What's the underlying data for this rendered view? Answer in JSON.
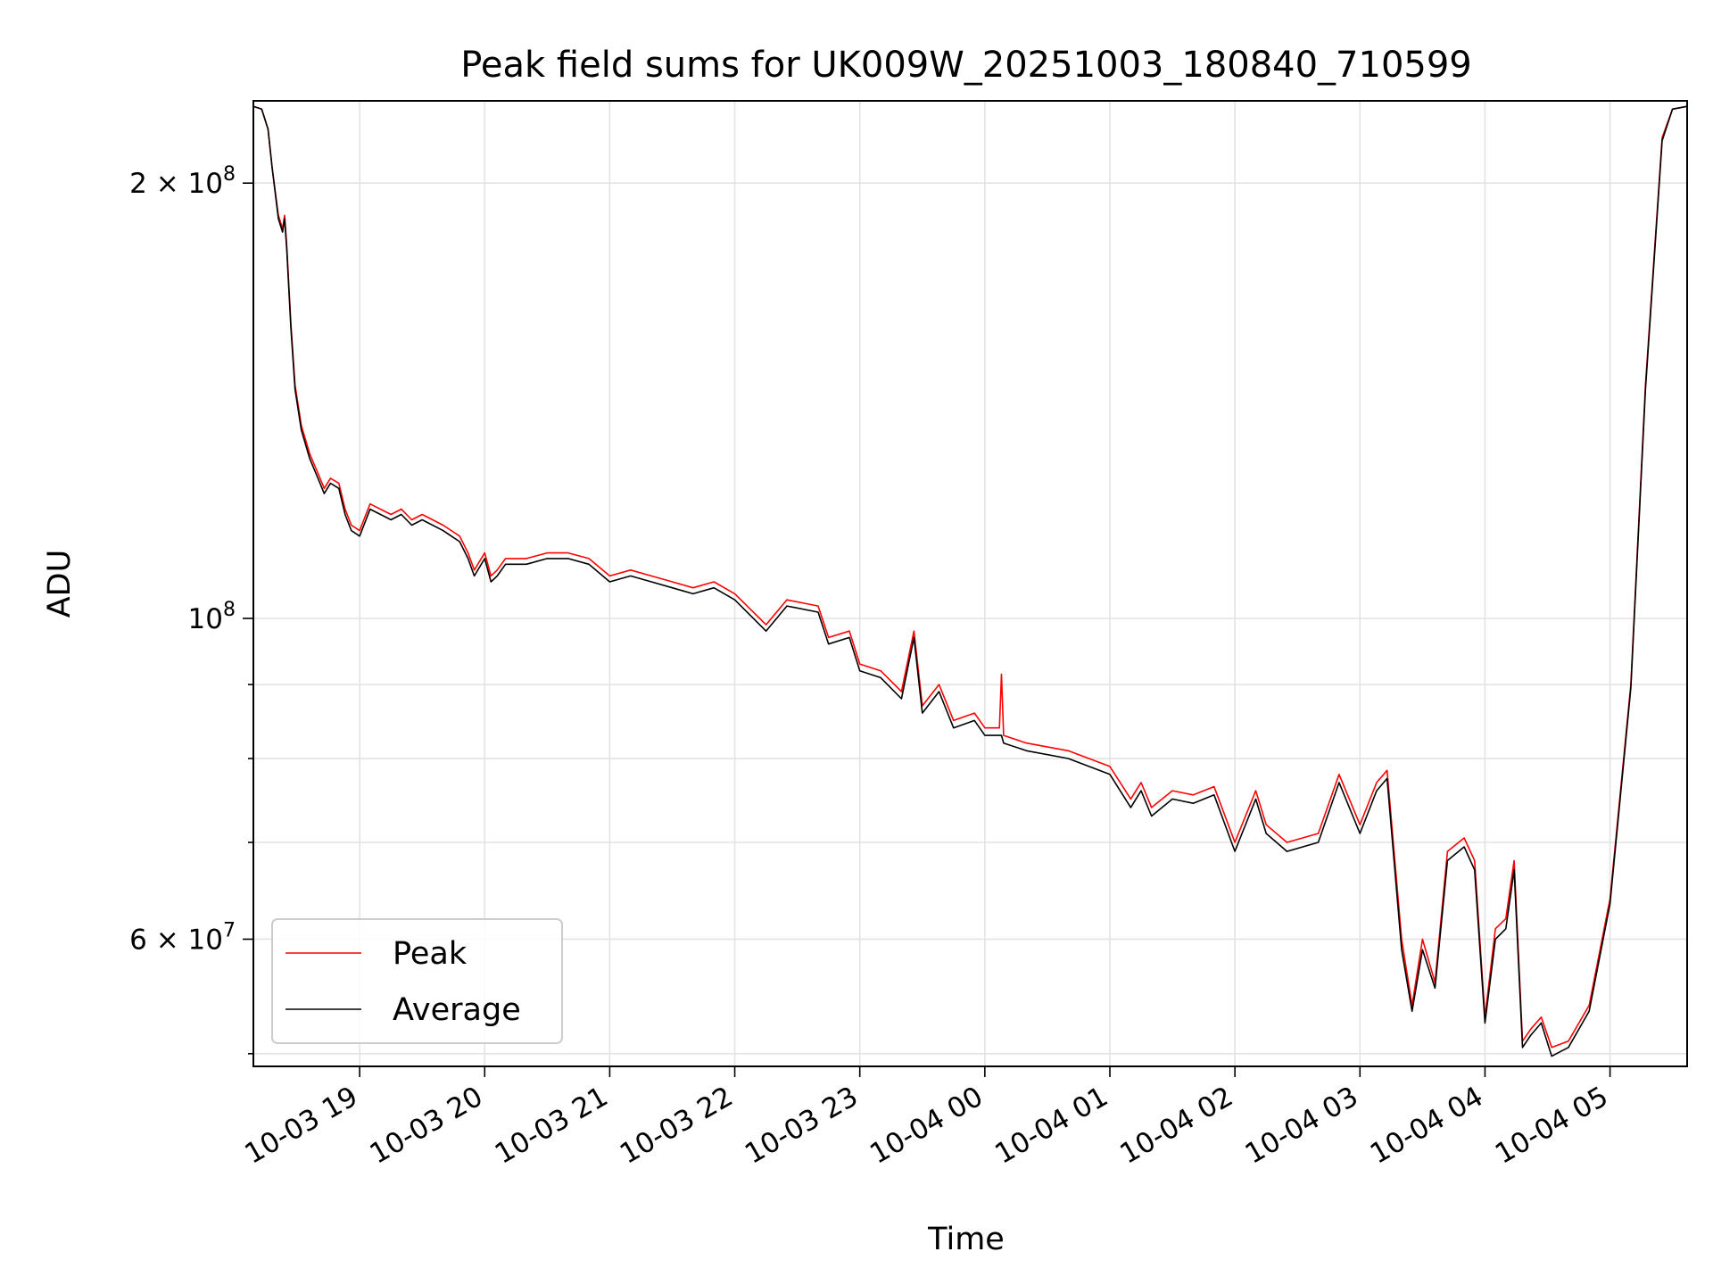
{
  "chart_data": {
    "type": "line",
    "title": "Peak field sums for UK009W_20251003_180840_710599",
    "xlabel": "Time",
    "ylabel": "ADU",
    "x_scale": "time",
    "y_scale": "log",
    "xlim": [
      "2025-10-03 18:09",
      "2025-10-04 05:37"
    ],
    "ylim": [
      49000000,
      228000000
    ],
    "grid": true,
    "legend_position": "lower-left",
    "x_ticks": [
      {
        "value": "2025-10-03 19:00",
        "label": "10-03 19"
      },
      {
        "value": "2025-10-03 20:00",
        "label": "10-03 20"
      },
      {
        "value": "2025-10-03 21:00",
        "label": "10-03 21"
      },
      {
        "value": "2025-10-03 22:00",
        "label": "10-03 22"
      },
      {
        "value": "2025-10-03 23:00",
        "label": "10-03 23"
      },
      {
        "value": "2025-10-04 00:00",
        "label": "10-04 00"
      },
      {
        "value": "2025-10-04 01:00",
        "label": "10-04 01"
      },
      {
        "value": "2025-10-04 02:00",
        "label": "10-04 02"
      },
      {
        "value": "2025-10-04 03:00",
        "label": "10-04 03"
      },
      {
        "value": "2025-10-04 04:00",
        "label": "10-04 04"
      },
      {
        "value": "2025-10-04 05:00",
        "label": "10-04 05"
      }
    ],
    "y_ticks": [
      {
        "value": 200000000,
        "mantissa": "2",
        "times": "×",
        "base": "10",
        "exp": "8"
      },
      {
        "value": 100000000,
        "mantissa": "",
        "times": "",
        "base": "10",
        "exp": "8"
      },
      {
        "value": 60000000,
        "mantissa": "6",
        "times": "×",
        "base": "10",
        "exp": "7"
      }
    ],
    "y_minor_ticks": [
      50000000,
      70000000,
      80000000,
      90000000
    ],
    "series": [
      {
        "name": "Peak",
        "color": "#ff0000",
        "points": [
          [
            "2025-10-03 18:09",
            226000000
          ],
          [
            "2025-10-03 18:13",
            225000000
          ],
          [
            "2025-10-03 18:16",
            218000000
          ],
          [
            "2025-10-03 18:18",
            205000000
          ],
          [
            "2025-10-03 18:21",
            190000000
          ],
          [
            "2025-10-03 18:23",
            186000000
          ],
          [
            "2025-10-03 18:24",
            190000000
          ],
          [
            "2025-10-03 18:25",
            181000000
          ],
          [
            "2025-10-03 18:27",
            160000000
          ],
          [
            "2025-10-03 18:29",
            145000000
          ],
          [
            "2025-10-03 18:32",
            136000000
          ],
          [
            "2025-10-03 18:36",
            130000000
          ],
          [
            "2025-10-03 18:40",
            126000000
          ],
          [
            "2025-10-03 18:43",
            123000000
          ],
          [
            "2025-10-03 18:46",
            125000000
          ],
          [
            "2025-10-03 18:50",
            124000000
          ],
          [
            "2025-10-03 18:53",
            119000000
          ],
          [
            "2025-10-03 18:56",
            116000000
          ],
          [
            "2025-10-03 19:00",
            115000000
          ],
          [
            "2025-10-03 19:05",
            120000000
          ],
          [
            "2025-10-03 19:10",
            119000000
          ],
          [
            "2025-10-03 19:15",
            118000000
          ],
          [
            "2025-10-03 19:20",
            119000000
          ],
          [
            "2025-10-03 19:25",
            117000000
          ],
          [
            "2025-10-03 19:30",
            118000000
          ],
          [
            "2025-10-03 19:40",
            116000000
          ],
          [
            "2025-10-03 19:48",
            114000000
          ],
          [
            "2025-10-03 19:52",
            111000000
          ],
          [
            "2025-10-03 19:55",
            108000000
          ],
          [
            "2025-10-03 20:00",
            111000000
          ],
          [
            "2025-10-03 20:03",
            107000000
          ],
          [
            "2025-10-03 20:06",
            108000000
          ],
          [
            "2025-10-03 20:10",
            110000000
          ],
          [
            "2025-10-03 20:20",
            110000000
          ],
          [
            "2025-10-03 20:30",
            111000000
          ],
          [
            "2025-10-03 20:40",
            111000000
          ],
          [
            "2025-10-03 20:50",
            110000000
          ],
          [
            "2025-10-03 21:00",
            107000000
          ],
          [
            "2025-10-03 21:10",
            108000000
          ],
          [
            "2025-10-03 21:20",
            107000000
          ],
          [
            "2025-10-03 21:30",
            106000000
          ],
          [
            "2025-10-03 21:40",
            105000000
          ],
          [
            "2025-10-03 21:50",
            106000000
          ],
          [
            "2025-10-03 22:00",
            104000000
          ],
          [
            "2025-10-03 22:15",
            99000000
          ],
          [
            "2025-10-03 22:25",
            103000000
          ],
          [
            "2025-10-03 22:40",
            102000000
          ],
          [
            "2025-10-03 22:45",
            97000000
          ],
          [
            "2025-10-03 22:55",
            98000000
          ],
          [
            "2025-10-03 23:00",
            93000000
          ],
          [
            "2025-10-03 23:10",
            92000000
          ],
          [
            "2025-10-03 23:20",
            89000000
          ],
          [
            "2025-10-03 23:26",
            98000000
          ],
          [
            "2025-10-03 23:30",
            87000000
          ],
          [
            "2025-10-03 23:38",
            90000000
          ],
          [
            "2025-10-03 23:45",
            85000000
          ],
          [
            "2025-10-03 23:55",
            86000000
          ],
          [
            "2025-10-04 00:00",
            84000000
          ],
          [
            "2025-10-04 00:07",
            84000000
          ],
          [
            "2025-10-04 00:08",
            91500000
          ],
          [
            "2025-10-04 00:09",
            83000000
          ],
          [
            "2025-10-04 00:20",
            82000000
          ],
          [
            "2025-10-04 00:40",
            81000000
          ],
          [
            "2025-10-04 01:00",
            79000000
          ],
          [
            "2025-10-04 01:10",
            75000000
          ],
          [
            "2025-10-04 01:15",
            77000000
          ],
          [
            "2025-10-04 01:20",
            74000000
          ],
          [
            "2025-10-04 01:30",
            76000000
          ],
          [
            "2025-10-04 01:40",
            75500000
          ],
          [
            "2025-10-04 01:50",
            76500000
          ],
          [
            "2025-10-04 02:00",
            70000000
          ],
          [
            "2025-10-04 02:10",
            76000000
          ],
          [
            "2025-10-04 02:15",
            72000000
          ],
          [
            "2025-10-04 02:25",
            70000000
          ],
          [
            "2025-10-04 02:40",
            71000000
          ],
          [
            "2025-10-04 02:50",
            78000000
          ],
          [
            "2025-10-04 03:00",
            72000000
          ],
          [
            "2025-10-04 03:08",
            77000000
          ],
          [
            "2025-10-04 03:13",
            78500000
          ],
          [
            "2025-10-04 03:20",
            60000000
          ],
          [
            "2025-10-04 03:25",
            54000000
          ],
          [
            "2025-10-04 03:30",
            60000000
          ],
          [
            "2025-10-04 03:36",
            56000000
          ],
          [
            "2025-10-04 03:42",
            69000000
          ],
          [
            "2025-10-04 03:50",
            70500000
          ],
          [
            "2025-10-04 03:55",
            68000000
          ],
          [
            "2025-10-04 04:00",
            53000000
          ],
          [
            "2025-10-04 04:05",
            61000000
          ],
          [
            "2025-10-04 04:10",
            62000000
          ],
          [
            "2025-10-04 04:14",
            68000000
          ],
          [
            "2025-10-04 04:18",
            51000000
          ],
          [
            "2025-10-04 04:22",
            52000000
          ],
          [
            "2025-10-04 04:27",
            53000000
          ],
          [
            "2025-10-04 04:32",
            50500000
          ],
          [
            "2025-10-04 04:40",
            51000000
          ],
          [
            "2025-10-04 04:50",
            54000000
          ],
          [
            "2025-10-04 05:00",
            64000000
          ],
          [
            "2025-10-04 05:10",
            90000000
          ],
          [
            "2025-10-04 05:17",
            145000000
          ],
          [
            "2025-10-04 05:25",
            215000000
          ],
          [
            "2025-10-04 05:30",
            225000000
          ],
          [
            "2025-10-04 05:37",
            226000000
          ]
        ]
      },
      {
        "name": "Average",
        "color": "#000000",
        "points": [
          [
            "2025-10-03 18:09",
            226000000
          ],
          [
            "2025-10-03 18:13",
            225000000
          ],
          [
            "2025-10-03 18:16",
            218000000
          ],
          [
            "2025-10-03 18:18",
            205000000
          ],
          [
            "2025-10-03 18:21",
            189000000
          ],
          [
            "2025-10-03 18:23",
            185000000
          ],
          [
            "2025-10-03 18:24",
            189000000
          ],
          [
            "2025-10-03 18:25",
            180000000
          ],
          [
            "2025-10-03 18:27",
            159000000
          ],
          [
            "2025-10-03 18:29",
            144000000
          ],
          [
            "2025-10-03 18:32",
            135000000
          ],
          [
            "2025-10-03 18:36",
            129000000
          ],
          [
            "2025-10-03 18:40",
            125000000
          ],
          [
            "2025-10-03 18:43",
            122000000
          ],
          [
            "2025-10-03 18:46",
            124000000
          ],
          [
            "2025-10-03 18:50",
            123000000
          ],
          [
            "2025-10-03 18:53",
            118000000
          ],
          [
            "2025-10-03 18:56",
            115000000
          ],
          [
            "2025-10-03 19:00",
            114000000
          ],
          [
            "2025-10-03 19:05",
            119000000
          ],
          [
            "2025-10-03 19:10",
            118000000
          ],
          [
            "2025-10-03 19:15",
            117000000
          ],
          [
            "2025-10-03 19:20",
            118000000
          ],
          [
            "2025-10-03 19:25",
            116000000
          ],
          [
            "2025-10-03 19:30",
            117000000
          ],
          [
            "2025-10-03 19:40",
            115000000
          ],
          [
            "2025-10-03 19:48",
            113000000
          ],
          [
            "2025-10-03 19:52",
            110000000
          ],
          [
            "2025-10-03 19:55",
            107000000
          ],
          [
            "2025-10-03 20:00",
            110000000
          ],
          [
            "2025-10-03 20:03",
            106000000
          ],
          [
            "2025-10-03 20:06",
            107000000
          ],
          [
            "2025-10-03 20:10",
            109000000
          ],
          [
            "2025-10-03 20:20",
            109000000
          ],
          [
            "2025-10-03 20:30",
            110000000
          ],
          [
            "2025-10-03 20:40",
            110000000
          ],
          [
            "2025-10-03 20:50",
            109000000
          ],
          [
            "2025-10-03 21:00",
            106000000
          ],
          [
            "2025-10-03 21:10",
            107000000
          ],
          [
            "2025-10-03 21:20",
            106000000
          ],
          [
            "2025-10-03 21:30",
            105000000
          ],
          [
            "2025-10-03 21:40",
            104000000
          ],
          [
            "2025-10-03 21:50",
            105000000
          ],
          [
            "2025-10-03 22:00",
            103000000
          ],
          [
            "2025-10-03 22:15",
            98000000
          ],
          [
            "2025-10-03 22:25",
            102000000
          ],
          [
            "2025-10-03 22:40",
            101000000
          ],
          [
            "2025-10-03 22:45",
            96000000
          ],
          [
            "2025-10-03 22:55",
            97000000
          ],
          [
            "2025-10-03 23:00",
            92000000
          ],
          [
            "2025-10-03 23:10",
            91000000
          ],
          [
            "2025-10-03 23:20",
            88000000
          ],
          [
            "2025-10-03 23:26",
            97000000
          ],
          [
            "2025-10-03 23:30",
            86000000
          ],
          [
            "2025-10-03 23:38",
            89000000
          ],
          [
            "2025-10-03 23:45",
            84000000
          ],
          [
            "2025-10-03 23:55",
            85000000
          ],
          [
            "2025-10-04 00:00",
            83000000
          ],
          [
            "2025-10-04 00:07",
            83000000
          ],
          [
            "2025-10-04 00:08",
            83000000
          ],
          [
            "2025-10-04 00:09",
            82000000
          ],
          [
            "2025-10-04 00:20",
            81000000
          ],
          [
            "2025-10-04 00:40",
            80000000
          ],
          [
            "2025-10-04 01:00",
            78000000
          ],
          [
            "2025-10-04 01:10",
            74000000
          ],
          [
            "2025-10-04 01:15",
            76000000
          ],
          [
            "2025-10-04 01:20",
            73000000
          ],
          [
            "2025-10-04 01:30",
            75000000
          ],
          [
            "2025-10-04 01:40",
            74500000
          ],
          [
            "2025-10-04 01:50",
            75500000
          ],
          [
            "2025-10-04 02:00",
            69000000
          ],
          [
            "2025-10-04 02:10",
            75000000
          ],
          [
            "2025-10-04 02:15",
            71000000
          ],
          [
            "2025-10-04 02:25",
            69000000
          ],
          [
            "2025-10-04 02:40",
            70000000
          ],
          [
            "2025-10-04 02:50",
            77000000
          ],
          [
            "2025-10-04 03:00",
            71000000
          ],
          [
            "2025-10-04 03:08",
            76000000
          ],
          [
            "2025-10-04 03:13",
            77500000
          ],
          [
            "2025-10-04 03:20",
            59000000
          ],
          [
            "2025-10-04 03:25",
            53500000
          ],
          [
            "2025-10-04 03:30",
            59000000
          ],
          [
            "2025-10-04 03:36",
            55500000
          ],
          [
            "2025-10-04 03:42",
            68000000
          ],
          [
            "2025-10-04 03:50",
            69500000
          ],
          [
            "2025-10-04 03:55",
            67000000
          ],
          [
            "2025-10-04 04:00",
            52500000
          ],
          [
            "2025-10-04 04:05",
            60000000
          ],
          [
            "2025-10-04 04:10",
            61000000
          ],
          [
            "2025-10-04 04:14",
            67000000
          ],
          [
            "2025-10-04 04:18",
            50500000
          ],
          [
            "2025-10-04 04:22",
            51500000
          ],
          [
            "2025-10-04 04:27",
            52500000
          ],
          [
            "2025-10-04 04:32",
            49800000
          ],
          [
            "2025-10-04 04:40",
            50500000
          ],
          [
            "2025-10-04 04:50",
            53500000
          ],
          [
            "2025-10-04 05:00",
            63500000
          ],
          [
            "2025-10-04 05:10",
            89500000
          ],
          [
            "2025-10-04 05:17",
            144000000
          ],
          [
            "2025-10-04 05:25",
            214000000
          ],
          [
            "2025-10-04 05:30",
            225000000
          ],
          [
            "2025-10-04 05:37",
            226000000
          ]
        ]
      }
    ]
  }
}
